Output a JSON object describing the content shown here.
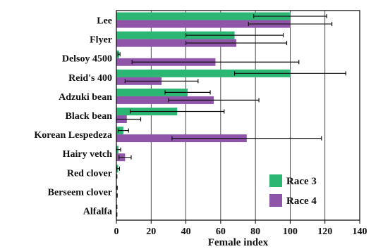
{
  "chart_data": {
    "type": "bar",
    "orientation": "horizontal",
    "title": "",
    "xlabel": "Female index",
    "ylabel": "",
    "xlim": [
      0,
      140
    ],
    "xticks": [
      0,
      20,
      40,
      60,
      80,
      100,
      120,
      140
    ],
    "grid": "vertical",
    "legend_position": "bottom-right",
    "categories": [
      "Lee",
      "Flyer",
      "Delsoy 4500",
      "Reid's 400",
      "Adzuki bean",
      "Black bean",
      "Korean Lespedeza",
      "Hairy vetch",
      "Red clover",
      "Berseem clover",
      "Alfalfa"
    ],
    "series": [
      {
        "name": "Race 3",
        "color": "#2bb673",
        "values": [
          100,
          68,
          1.5,
          100,
          41,
          35,
          4,
          1.2,
          1,
          0,
          0
        ],
        "error": [
          21,
          28,
          0.6,
          32,
          13,
          27,
          3,
          1.3,
          0.8,
          0.5,
          0.3
        ]
      },
      {
        "name": "Race 4",
        "color": "#8e55a9",
        "values": [
          100,
          69,
          57,
          26,
          56,
          6,
          75,
          5,
          0,
          0,
          0
        ],
        "error": [
          24,
          29,
          48,
          21,
          26,
          8,
          43,
          3.5,
          0.3,
          0.5,
          0.3
        ]
      }
    ]
  }
}
